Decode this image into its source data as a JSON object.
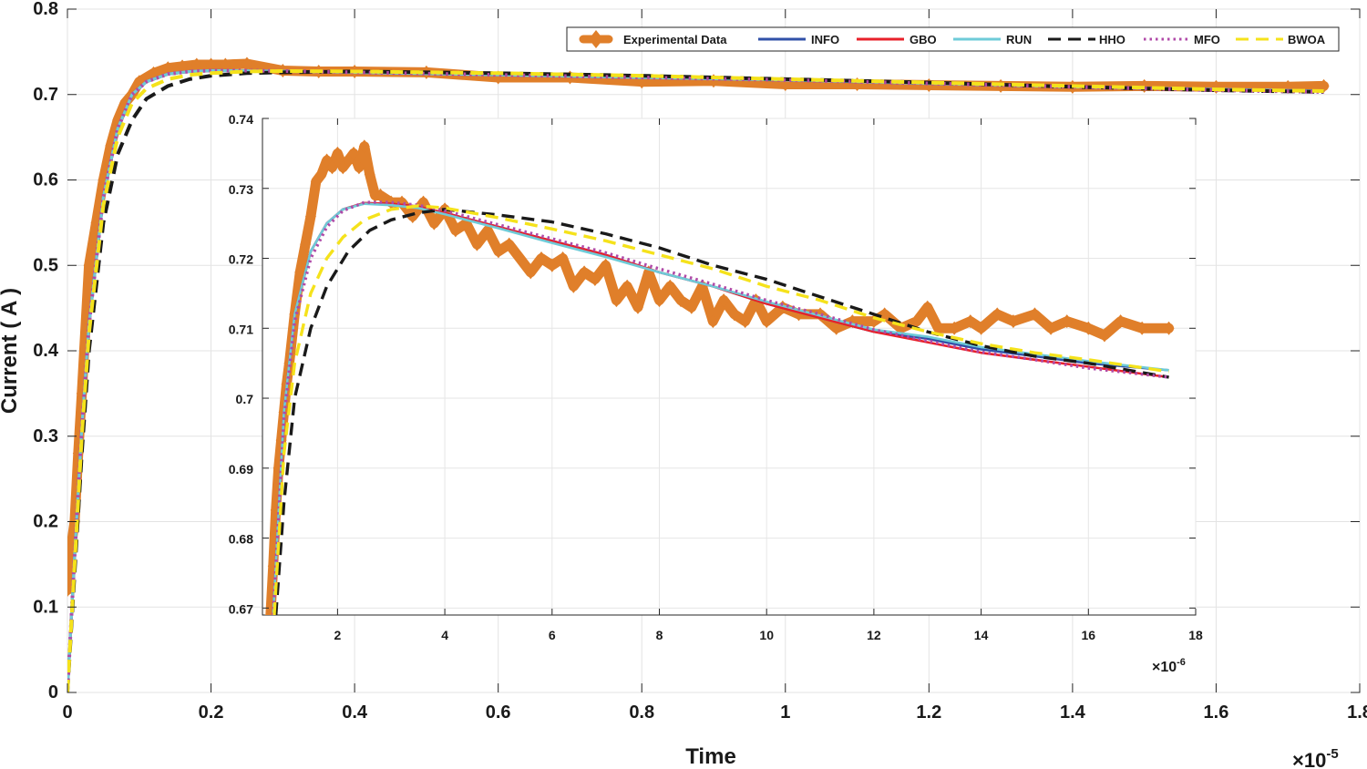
{
  "chart_data": [
    {
      "type": "line",
      "role": "main",
      "xlabel": "Time",
      "ylabel": "Current ( A )",
      "x_multiplier_base": "×10",
      "x_multiplier_exp": "-5",
      "xlim": [
        0,
        1.8
      ],
      "ylim": [
        0,
        0.8
      ],
      "xticks": [
        0,
        0.2,
        0.4,
        0.6,
        0.8,
        1,
        1.2,
        1.4,
        1.6,
        1.8
      ],
      "xtick_labels": [
        "0",
        "0.2",
        "0.4",
        "0.6",
        "0.8",
        "1",
        "1.2",
        "1.4",
        "1.6",
        "1.8"
      ],
      "yticks": [
        0,
        0.1,
        0.2,
        0.3,
        0.4,
        0.5,
        0.6,
        0.7,
        0.8
      ],
      "ytick_labels": [
        "0",
        "0.1",
        "0.2",
        "0.3",
        "0.4",
        "0.5",
        "0.6",
        "0.7",
        "0.8"
      ],
      "grid": true,
      "legend_position": "top-right",
      "series": [
        {
          "name": "Experimental Data",
          "color": "#E07F2A",
          "style": "markers",
          "x": [
            0.0,
            0.005,
            0.01,
            0.015,
            0.02,
            0.03,
            0.04,
            0.05,
            0.06,
            0.07,
            0.08,
            0.09,
            0.1,
            0.12,
            0.14,
            0.16,
            0.18,
            0.2,
            0.22,
            0.25,
            0.3,
            0.35,
            0.4,
            0.5,
            0.6,
            0.7,
            0.8,
            0.9,
            1.0,
            1.1,
            1.2,
            1.3,
            1.4,
            1.5,
            1.6,
            1.7,
            1.75
          ],
          "y": [
            0.12,
            0.17,
            0.2,
            0.28,
            0.35,
            0.5,
            0.55,
            0.6,
            0.64,
            0.67,
            0.69,
            0.7,
            0.715,
            0.725,
            0.731,
            0.733,
            0.735,
            0.735,
            0.735,
            0.736,
            0.728,
            0.727,
            0.727,
            0.726,
            0.72,
            0.72,
            0.715,
            0.716,
            0.712,
            0.712,
            0.711,
            0.71,
            0.709,
            0.71,
            0.709,
            0.709,
            0.71
          ]
        },
        {
          "name": "INFO",
          "color": "#3050A8",
          "style": "solid",
          "x": [
            0.0,
            0.01,
            0.02,
            0.03,
            0.05,
            0.07,
            0.09,
            0.11,
            0.14,
            0.17,
            0.2,
            0.25,
            0.3,
            0.4,
            0.6,
            0.8,
            1.0,
            1.2,
            1.4,
            1.6,
            1.75
          ],
          "y": [
            0.0,
            0.16,
            0.31,
            0.43,
            0.58,
            0.66,
            0.7,
            0.715,
            0.724,
            0.727,
            0.728,
            0.7278,
            0.7272,
            0.726,
            0.723,
            0.72,
            0.717,
            0.713,
            0.709,
            0.706,
            0.704
          ]
        },
        {
          "name": "GBO",
          "color": "#E8202A",
          "style": "solid",
          "x": [
            0.0,
            0.01,
            0.02,
            0.03,
            0.05,
            0.07,
            0.09,
            0.11,
            0.14,
            0.17,
            0.2,
            0.25,
            0.3,
            0.4,
            0.6,
            0.8,
            1.0,
            1.2,
            1.4,
            1.6,
            1.75
          ],
          "y": [
            0.0,
            0.16,
            0.31,
            0.43,
            0.58,
            0.66,
            0.7,
            0.715,
            0.724,
            0.727,
            0.728,
            0.7278,
            0.7272,
            0.726,
            0.723,
            0.72,
            0.717,
            0.713,
            0.709,
            0.706,
            0.704
          ]
        },
        {
          "name": "RUN",
          "color": "#6ECBD8",
          "style": "solid",
          "x": [
            0.0,
            0.01,
            0.02,
            0.03,
            0.05,
            0.07,
            0.09,
            0.11,
            0.14,
            0.17,
            0.2,
            0.25,
            0.3,
            0.4,
            0.6,
            0.8,
            1.0,
            1.2,
            1.4,
            1.6,
            1.75
          ],
          "y": [
            0.0,
            0.16,
            0.31,
            0.43,
            0.58,
            0.66,
            0.7,
            0.715,
            0.724,
            0.727,
            0.728,
            0.7278,
            0.7272,
            0.726,
            0.723,
            0.72,
            0.717,
            0.713,
            0.709,
            0.706,
            0.704
          ]
        },
        {
          "name": "HHO",
          "color": "#1A1A1A",
          "style": "dashed",
          "x": [
            0.0,
            0.01,
            0.02,
            0.03,
            0.05,
            0.07,
            0.09,
            0.11,
            0.14,
            0.17,
            0.2,
            0.25,
            0.3,
            0.4,
            0.6,
            0.8,
            1.0,
            1.2,
            1.4,
            1.6,
            1.75
          ],
          "y": [
            0.0,
            0.14,
            0.28,
            0.4,
            0.55,
            0.63,
            0.67,
            0.695,
            0.71,
            0.718,
            0.722,
            0.725,
            0.726,
            0.727,
            0.725,
            0.722,
            0.718,
            0.714,
            0.709,
            0.705,
            0.703
          ]
        },
        {
          "name": "MFO",
          "color": "#B04AA8",
          "style": "dotted",
          "x": [
            0.0,
            0.01,
            0.02,
            0.03,
            0.05,
            0.07,
            0.09,
            0.11,
            0.14,
            0.17,
            0.2,
            0.25,
            0.3,
            0.4,
            0.6,
            0.8,
            1.0,
            1.2,
            1.4,
            1.6,
            1.75
          ],
          "y": [
            0.0,
            0.16,
            0.31,
            0.43,
            0.58,
            0.66,
            0.7,
            0.715,
            0.724,
            0.727,
            0.728,
            0.728,
            0.7275,
            0.726,
            0.723,
            0.72,
            0.717,
            0.713,
            0.709,
            0.705,
            0.703
          ]
        },
        {
          "name": "BWOA",
          "color": "#F5E21B",
          "style": "dashed",
          "x": [
            0.0,
            0.01,
            0.02,
            0.03,
            0.05,
            0.07,
            0.09,
            0.11,
            0.14,
            0.17,
            0.2,
            0.25,
            0.3,
            0.4,
            0.6,
            0.8,
            1.0,
            1.2,
            1.4,
            1.6,
            1.75
          ],
          "y": [
            0.0,
            0.15,
            0.3,
            0.42,
            0.57,
            0.65,
            0.69,
            0.707,
            0.718,
            0.723,
            0.725,
            0.727,
            0.7275,
            0.727,
            0.725,
            0.722,
            0.718,
            0.714,
            0.71,
            0.706,
            0.704
          ]
        }
      ]
    },
    {
      "type": "line",
      "role": "inset",
      "x_multiplier_base": "×10",
      "x_multiplier_exp": "-6",
      "xlim": [
        0.6,
        18.0
      ],
      "ylim": [
        0.669,
        0.74
      ],
      "xticks": [
        2,
        4,
        6,
        8,
        10,
        12,
        14,
        16,
        18
      ],
      "xtick_labels": [
        "2",
        "4",
        "6",
        "8",
        "10",
        "12",
        "14",
        "16",
        "18"
      ],
      "yticks": [
        0.67,
        0.68,
        0.69,
        0.7,
        0.71,
        0.72,
        0.73,
        0.74
      ],
      "ytick_labels": [
        "0.67",
        "0.68",
        "0.69",
        "0.7",
        "0.71",
        "0.72",
        "0.73",
        "0.74"
      ],
      "grid": true,
      "series": [
        {
          "name": "Experimental Data",
          "color": "#E07F2A",
          "style": "markers",
          "x": [
            0.75,
            0.8,
            0.85,
            0.9,
            0.95,
            1.0,
            1.05,
            1.1,
            1.2,
            1.3,
            1.4,
            1.5,
            1.6,
            1.7,
            1.8,
            1.9,
            2.0,
            2.1,
            2.2,
            2.3,
            2.4,
            2.5,
            2.6,
            2.7,
            2.8,
            3.0,
            3.2,
            3.4,
            3.6,
            3.8,
            4.0,
            4.2,
            4.4,
            4.6,
            4.8,
            5.0,
            5.2,
            5.4,
            5.6,
            5.8,
            6.0,
            6.2,
            6.4,
            6.6,
            6.8,
            7.0,
            7.2,
            7.4,
            7.6,
            7.8,
            8.0,
            8.2,
            8.4,
            8.6,
            8.8,
            9.0,
            9.2,
            9.4,
            9.6,
            9.8,
            10.0,
            10.3,
            10.6,
            11.0,
            11.3,
            11.6,
            12.0,
            12.2,
            12.5,
            12.8,
            13.0,
            13.2,
            13.5,
            13.8,
            14.0,
            14.3,
            14.6,
            15.0,
            15.3,
            15.6,
            16.0,
            16.3,
            16.6,
            17.0,
            17.5
          ],
          "y": [
            0.669,
            0.676,
            0.684,
            0.69,
            0.694,
            0.698,
            0.702,
            0.705,
            0.712,
            0.718,
            0.722,
            0.726,
            0.731,
            0.732,
            0.734,
            0.733,
            0.735,
            0.733,
            0.734,
            0.735,
            0.733,
            0.736,
            0.732,
            0.729,
            0.729,
            0.728,
            0.728,
            0.726,
            0.728,
            0.725,
            0.727,
            0.724,
            0.725,
            0.722,
            0.724,
            0.721,
            0.722,
            0.72,
            0.718,
            0.72,
            0.719,
            0.72,
            0.716,
            0.718,
            0.717,
            0.719,
            0.714,
            0.716,
            0.713,
            0.718,
            0.714,
            0.716,
            0.714,
            0.713,
            0.716,
            0.711,
            0.714,
            0.712,
            0.711,
            0.714,
            0.711,
            0.713,
            0.712,
            0.712,
            0.71,
            0.711,
            0.711,
            0.712,
            0.71,
            0.711,
            0.713,
            0.71,
            0.71,
            0.711,
            0.71,
            0.712,
            0.711,
            0.712,
            0.71,
            0.711,
            0.71,
            0.709,
            0.711,
            0.71,
            0.71
          ]
        },
        {
          "name": "INFO",
          "color": "#3050A8",
          "style": "solid",
          "x": [
            0.8,
            1.0,
            1.2,
            1.5,
            1.8,
            2.1,
            2.5,
            3.0,
            3.5,
            4.0,
            5.0,
            6.0,
            7.0,
            8.0,
            9.0,
            10.0,
            11.0,
            12.0,
            13.0,
            14.0,
            15.0,
            16.0,
            17.5
          ],
          "y": [
            0.669,
            0.698,
            0.712,
            0.721,
            0.725,
            0.727,
            0.7279,
            0.7278,
            0.7274,
            0.7265,
            0.7245,
            0.7225,
            0.7205,
            0.718,
            0.716,
            0.7135,
            0.7115,
            0.7095,
            0.7085,
            0.707,
            0.706,
            0.705,
            0.704
          ]
        },
        {
          "name": "GBO",
          "color": "#E8202A",
          "style": "solid",
          "x": [
            0.8,
            1.0,
            1.2,
            1.5,
            1.8,
            2.1,
            2.5,
            3.0,
            3.5,
            4.0,
            5.0,
            6.0,
            7.0,
            8.0,
            9.0,
            10.0,
            11.0,
            12.0,
            13.0,
            14.0,
            15.0,
            16.0,
            17.5
          ],
          "y": [
            0.669,
            0.698,
            0.712,
            0.721,
            0.725,
            0.727,
            0.7279,
            0.7278,
            0.7274,
            0.7265,
            0.7245,
            0.7225,
            0.7205,
            0.718,
            0.716,
            0.7135,
            0.7115,
            0.7095,
            0.708,
            0.7065,
            0.7055,
            0.7045,
            0.703
          ]
        },
        {
          "name": "RUN",
          "color": "#6ECBD8",
          "style": "solid",
          "x": [
            0.8,
            1.0,
            1.2,
            1.5,
            1.8,
            2.1,
            2.5,
            3.0,
            3.5,
            4.0,
            5.0,
            6.0,
            7.0,
            8.0,
            9.0,
            10.0,
            11.0,
            12.0,
            13.0,
            14.0,
            15.0,
            16.0,
            17.5
          ],
          "y": [
            0.669,
            0.698,
            0.712,
            0.721,
            0.725,
            0.727,
            0.7278,
            0.7276,
            0.7272,
            0.7263,
            0.7243,
            0.7222,
            0.7202,
            0.718,
            0.716,
            0.7138,
            0.7118,
            0.7098,
            0.7088,
            0.7073,
            0.7063,
            0.7053,
            0.704
          ]
        },
        {
          "name": "HHO",
          "color": "#1A1A1A",
          "style": "dashed",
          "x": [
            0.85,
            1.0,
            1.2,
            1.5,
            1.8,
            2.2,
            2.6,
            3.0,
            3.5,
            4.0,
            5.0,
            6.0,
            7.0,
            8.0,
            9.0,
            10.0,
            11.0,
            12.0,
            13.0,
            14.0,
            15.0,
            16.0,
            17.5
          ],
          "y": [
            0.669,
            0.685,
            0.7,
            0.71,
            0.716,
            0.721,
            0.724,
            0.7255,
            0.7265,
            0.727,
            0.7262,
            0.7252,
            0.7235,
            0.7215,
            0.719,
            0.717,
            0.7145,
            0.712,
            0.7095,
            0.7075,
            0.706,
            0.705,
            0.703
          ]
        },
        {
          "name": "MFO",
          "color": "#B04AA8",
          "style": "dotted",
          "x": [
            0.8,
            1.0,
            1.2,
            1.5,
            1.8,
            2.1,
            2.5,
            3.0,
            3.5,
            4.0,
            5.0,
            6.0,
            7.0,
            8.0,
            9.0,
            10.0,
            11.0,
            12.0,
            13.0,
            14.0,
            15.0,
            16.0,
            17.5
          ],
          "y": [
            0.669,
            0.697,
            0.711,
            0.72,
            0.7245,
            0.7268,
            0.728,
            0.728,
            0.7276,
            0.7268,
            0.7248,
            0.7228,
            0.7208,
            0.7185,
            0.7163,
            0.714,
            0.712,
            0.7098,
            0.7082,
            0.7066,
            0.7055,
            0.7043,
            0.703
          ]
        },
        {
          "name": "BWOA",
          "color": "#F5E21B",
          "style": "dashed",
          "x": [
            0.82,
            1.0,
            1.2,
            1.5,
            1.8,
            2.1,
            2.5,
            3.0,
            3.5,
            4.0,
            5.0,
            6.0,
            7.0,
            8.0,
            9.0,
            10.0,
            11.0,
            12.0,
            13.0,
            14.0,
            15.0,
            16.0,
            17.5
          ],
          "y": [
            0.669,
            0.692,
            0.705,
            0.715,
            0.72,
            0.723,
            0.7255,
            0.727,
            0.7275,
            0.7272,
            0.7258,
            0.7242,
            0.7225,
            0.7205,
            0.7185,
            0.716,
            0.714,
            0.7115,
            0.7095,
            0.7078,
            0.7065,
            0.7055,
            0.7038
          ]
        }
      ]
    }
  ]
}
